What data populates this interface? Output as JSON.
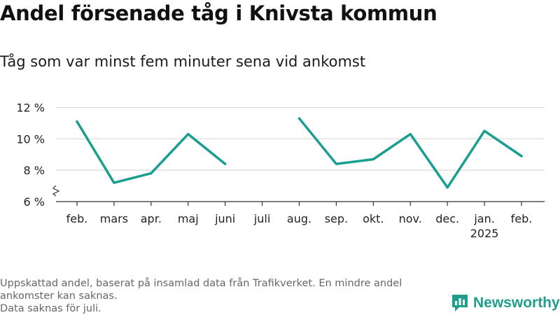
{
  "title": "Andel försenade tåg i Knivsta kommun",
  "subtitle": "Tåg som var minst fem minuter sena vid ankomst",
  "notes": [
    "Uppskattad andel, baserat på insamlad data från Trafikverket. En mindre andel ankomster kan saknas.",
    "Data saknas för juli."
  ],
  "brand": {
    "name": "Newsworthy",
    "icon": "newsworthy-bar-chart-icon"
  },
  "colors": {
    "line": "#1a9e8f",
    "grid": "#d9d9d9",
    "axis": "#333333"
  },
  "chart_data": {
    "type": "line",
    "categories": [
      "feb.",
      "mars",
      "apr.",
      "maj",
      "juni",
      "juli",
      "aug.",
      "sep.",
      "okt.",
      "nov.",
      "dec.",
      "jan.",
      "feb."
    ],
    "category_sublabels": [
      "",
      "",
      "",
      "",
      "",
      "",
      "",
      "",
      "",
      "",
      "",
      "2025",
      ""
    ],
    "series": [
      {
        "values": [
          11.1,
          7.2,
          7.8,
          10.3,
          8.4,
          null,
          11.3,
          8.4,
          8.7,
          10.3,
          6.9,
          10.5,
          8.9
        ]
      }
    ],
    "yticks": [
      6,
      8,
      10,
      12
    ],
    "ytick_labels": [
      "6 %",
      "8 %",
      "10 %",
      "12 %"
    ],
    "ylim": [
      6,
      12.6
    ],
    "axis_break": true,
    "grid": true
  }
}
